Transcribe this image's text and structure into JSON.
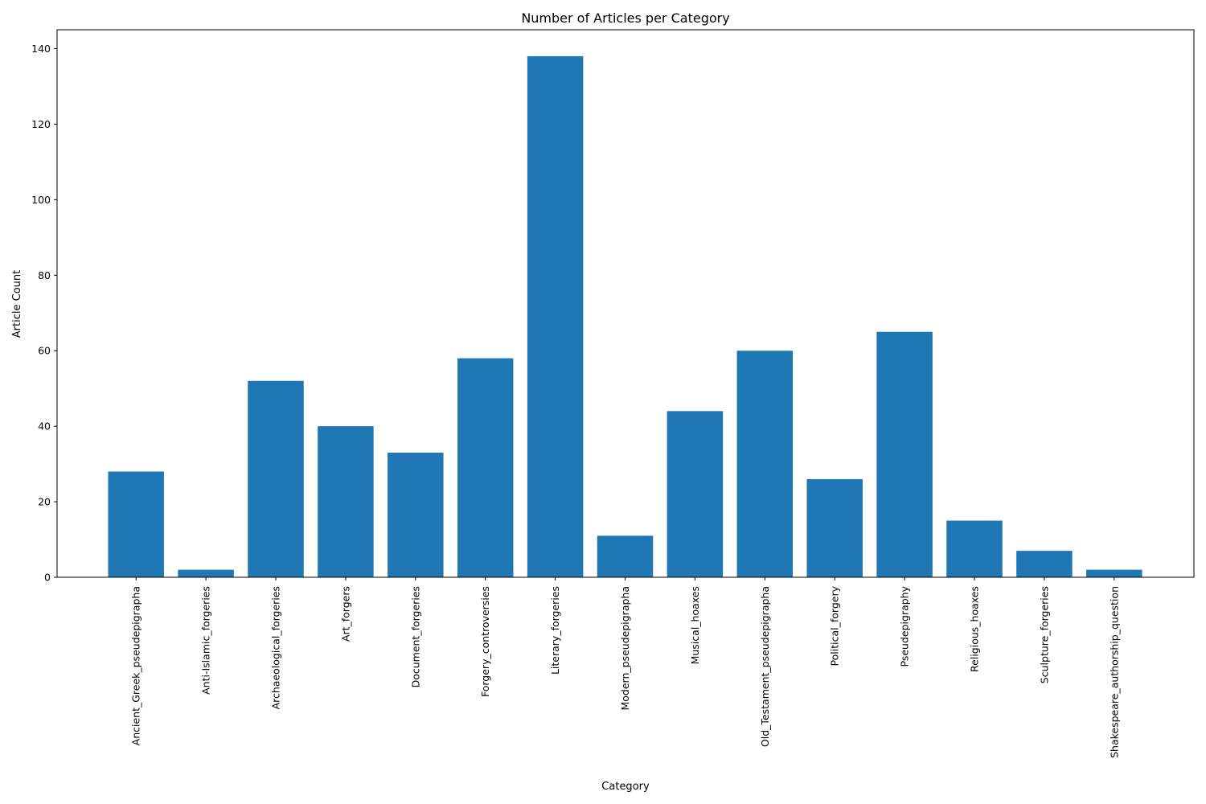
{
  "chart_data": {
    "type": "bar",
    "title": "Number of Articles per Category",
    "xlabel": "Category",
    "ylabel": "Article Count",
    "categories": [
      "Ancient_Greek_pseudepigrapha",
      "Anti-Islamic_forgeries",
      "Archaeological_forgeries",
      "Art_forgers",
      "Document_forgeries",
      "Forgery_controversies",
      "Literary_forgeries",
      "Modern_pseudepigrapha",
      "Musical_hoaxes",
      "Old_Testament_pseudepigrapha",
      "Political_forgery",
      "Pseudepigraphy",
      "Religious_hoaxes",
      "Sculpture_forgeries",
      "Shakespeare_authorship_question"
    ],
    "values": [
      28,
      2,
      52,
      40,
      33,
      58,
      138,
      11,
      44,
      60,
      26,
      65,
      15,
      7,
      2
    ],
    "ylim": [
      0,
      145
    ],
    "yticks": [
      0,
      20,
      40,
      60,
      80,
      100,
      120,
      140
    ],
    "grid": false,
    "legend": "none",
    "colors": {
      "bar": "#1f77b4",
      "axis": "#000000"
    }
  }
}
